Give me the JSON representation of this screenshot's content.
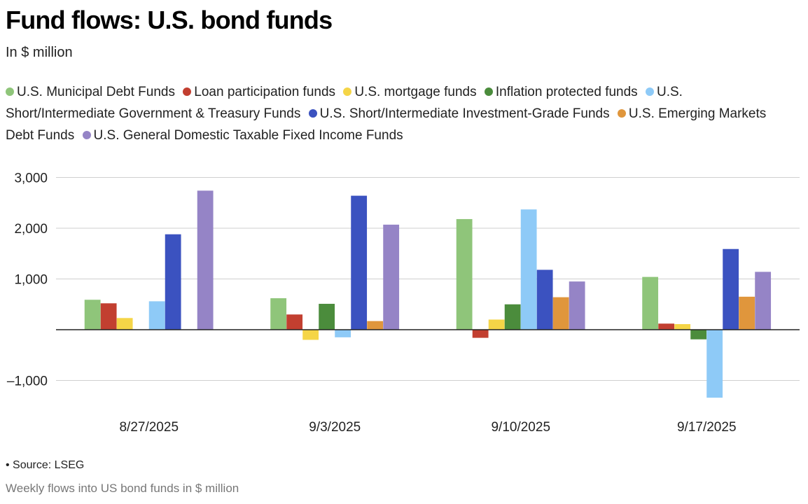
{
  "header": {
    "title": "Fund flows: U.S. bond funds",
    "subtitle": "In $ million"
  },
  "footer": {
    "source": "• Source: LSEG",
    "note": "Weekly flows into US bond funds in $ million"
  },
  "chart_data": {
    "type": "bar",
    "title": "Fund flows: U.S. bond funds",
    "subtitle": "In $ million",
    "categories": [
      "8/27/2025",
      "9/3/2025",
      "9/10/2025",
      "9/17/2025"
    ],
    "ylim": [
      -1400,
      3000
    ],
    "yticks": [
      3000,
      2000,
      1000,
      -1000
    ],
    "ytick_labels": [
      "3,000",
      "2,000",
      "1,000",
      "–1,000"
    ],
    "grid": true,
    "legend_position": "top",
    "series": [
      {
        "name": "U.S. Municipal Debt Funds",
        "color": "#8fc57a",
        "values": [
          590,
          620,
          2180,
          1040
        ]
      },
      {
        "name": "Loan participation funds",
        "color": "#c23f30",
        "values": [
          520,
          300,
          -160,
          120
        ]
      },
      {
        "name": "U.S. mortgage funds",
        "color": "#f5d547",
        "values": [
          230,
          -200,
          200,
          110
        ]
      },
      {
        "name": "Inflation protected funds",
        "color": "#4b8c3c",
        "values": [
          null,
          510,
          500,
          -190
        ]
      },
      {
        "name": "U.S. Short/Intermediate Government & Treasury Funds",
        "color": "#8ecaf7",
        "values": [
          560,
          -150,
          2370,
          -1340
        ]
      },
      {
        "name": "U.S. Short/Intermediate Investment-Grade Funds",
        "color": "#3b52c0",
        "values": [
          1880,
          2640,
          1180,
          1590
        ]
      },
      {
        "name": "U.S. Emerging Markets Debt Funds",
        "color": "#e0963c",
        "values": [
          null,
          170,
          640,
          650
        ]
      },
      {
        "name": "U.S. General Domestic Taxable Fixed Income Funds",
        "color": "#9584c6",
        "values": [
          2740,
          2070,
          950,
          1140
        ]
      }
    ]
  }
}
